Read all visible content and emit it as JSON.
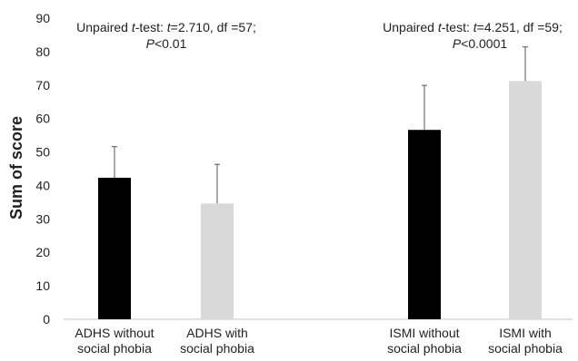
{
  "chart_data": {
    "type": "bar",
    "ylabel": "Sum of score",
    "ylim": [
      0,
      90
    ],
    "yticks": [
      0,
      10,
      20,
      30,
      40,
      50,
      60,
      70,
      80,
      90
    ],
    "grid": false,
    "legend": "none",
    "categories": [
      {
        "line1": "ADHS without",
        "line2": "social phobia"
      },
      {
        "line1": "ADHS with",
        "line2": "social phobia"
      },
      {
        "line1": "ISMI without",
        "line2": "social phobia"
      },
      {
        "line1": "ISMI with",
        "line2": "social phobia"
      }
    ],
    "values": [
      42.3,
      34.6,
      56.6,
      71.2
    ],
    "error_upper": [
      9.3,
      11.7,
      13.3,
      10.2
    ],
    "bar_colors": [
      "#000000",
      "#d9d9d9",
      "#000000",
      "#d9d9d9"
    ],
    "annotations": [
      {
        "line1": {
          "a": "Unpaired ",
          "b": "t",
          "c": "-test: ",
          "d": "t",
          "e": "=2.710, df =57;"
        },
        "line2": {
          "a": "P",
          "b": "<0.01"
        }
      },
      {
        "line1": {
          "a": "Unpaired ",
          "b": "t",
          "c": "-test: ",
          "d": "t",
          "e": "=4.251, df =59;"
        },
        "line2": {
          "a": "P",
          "b": "<0.0001"
        }
      }
    ]
  }
}
